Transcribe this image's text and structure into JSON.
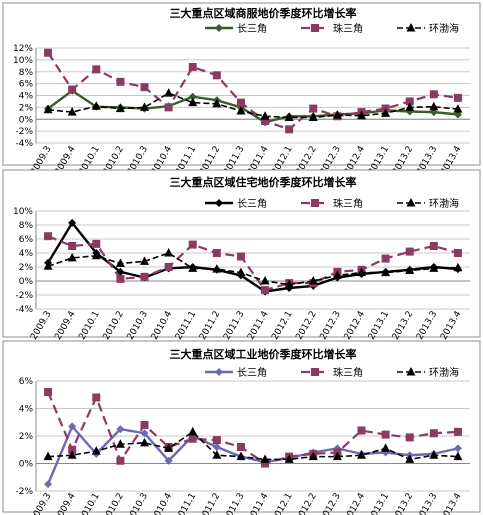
{
  "chart_data": [
    {
      "type": "line",
      "title": "三大重点区域商服地价季度环比增长率",
      "categories": [
        "2009.3",
        "2009.4",
        "2010.1",
        "2010.2",
        "2010.3",
        "2010.4",
        "2011.1",
        "2011.2",
        "2011.3",
        "2011.4",
        "2012.1",
        "2012.2",
        "2012.3",
        "2012.4",
        "2013.1",
        "2013.2",
        "2013.3",
        "2013.4"
      ],
      "ylim": [
        -4,
        12
      ],
      "yticks": [
        "-4%",
        "-2%",
        "0%",
        "2%",
        "4%",
        "6%",
        "8%",
        "10%",
        "12%"
      ],
      "grid": true,
      "legend_position": "top-right",
      "series": [
        {
          "name": "长三角",
          "color": "#3d5a2a",
          "values": [
            1.8,
            4.8,
            2.1,
            2.0,
            1.8,
            2.2,
            3.8,
            3.2,
            2.0,
            -0.5,
            0.5,
            0.5,
            0.8,
            1.0,
            1.5,
            1.3,
            1.2,
            0.8
          ]
        },
        {
          "name": "珠三角",
          "color": "#8b3a62",
          "values": [
            11.2,
            5.0,
            8.4,
            6.3,
            5.4,
            2.0,
            8.8,
            7.4,
            2.8,
            -0.3,
            -1.7,
            1.8,
            0.5,
            1.2,
            1.8,
            3.0,
            4.2,
            3.6
          ]
        },
        {
          "name": "环渤海",
          "color": "#000000",
          "values": [
            1.6,
            1.2,
            2.2,
            1.8,
            2.0,
            4.4,
            2.8,
            2.6,
            1.4,
            0.5,
            0.3,
            0.3,
            0.7,
            0.6,
            1.0,
            2.0,
            2.1,
            1.7
          ]
        }
      ]
    },
    {
      "type": "line",
      "title": "三大重点区域住宅地价季度环比增长率",
      "categories": [
        "2009.3",
        "2009.4",
        "2010.1",
        "2010.2",
        "2010.3",
        "2010.4",
        "2011.1",
        "2011.2",
        "2011.3",
        "2011.4",
        "2012.1",
        "2012.2",
        "2012.3",
        "2012.4",
        "2013.1",
        "2013.2",
        "2013.3",
        "2013.4"
      ],
      "ylim": [
        -4,
        10
      ],
      "yticks": [
        "-4%",
        "-2%",
        "0%",
        "2%",
        "4%",
        "6%",
        "8%",
        "10%"
      ],
      "grid": true,
      "legend_position": "top-right",
      "series": [
        {
          "name": "长三角",
          "color": "#000000",
          "values": [
            2.6,
            8.3,
            4.0,
            1.3,
            0.5,
            1.8,
            2.0,
            1.6,
            0.8,
            -1.5,
            -1.0,
            -0.7,
            0.5,
            1.0,
            1.3,
            1.6,
            2.0,
            1.7
          ]
        },
        {
          "name": "珠三角",
          "color": "#8b3a62",
          "values": [
            6.4,
            5.0,
            5.3,
            0.3,
            0.6,
            2.0,
            5.2,
            4.0,
            3.5,
            -1.3,
            -0.3,
            -0.3,
            1.3,
            1.6,
            3.2,
            4.2,
            5.0,
            4.0
          ]
        },
        {
          "name": "环渤海",
          "color": "#000000",
          "values": [
            2.1,
            3.3,
            3.6,
            2.5,
            2.8,
            4.0,
            1.8,
            1.7,
            1.2,
            0.0,
            -0.5,
            0.0,
            0.8,
            1.2,
            1.2,
            1.5,
            1.8,
            1.9
          ]
        }
      ]
    },
    {
      "type": "line",
      "title": "三大重点区域工业地价季度环比增长率",
      "categories": [
        "2009.3",
        "2009.4",
        "2010.1",
        "2010.2",
        "2010.3",
        "2010.4",
        "2011.1",
        "2011.2",
        "2011.3",
        "2011.4",
        "2012.1",
        "2012.2",
        "2012.3",
        "2012.4",
        "2013.1",
        "2013.2",
        "2013.3",
        "2013.4"
      ],
      "ylim": [
        -2,
        6
      ],
      "yticks": [
        "-2%",
        "0%",
        "2%",
        "4%",
        "6%"
      ],
      "grid": true,
      "legend_position": "top-right",
      "series": [
        {
          "name": "长三角",
          "color": "#6a6ab0",
          "values": [
            -1.5,
            2.7,
            0.7,
            2.5,
            2.2,
            0.2,
            2.0,
            1.2,
            0.5,
            0.1,
            0.4,
            0.8,
            1.1,
            0.7,
            0.8,
            0.6,
            0.7,
            1.1
          ]
        },
        {
          "name": "珠三角",
          "color": "#8b3a62",
          "values": [
            5.2,
            1.0,
            4.8,
            0.2,
            2.8,
            1.2,
            1.8,
            1.7,
            1.2,
            0.0,
            0.5,
            0.7,
            0.8,
            2.4,
            2.1,
            1.9,
            2.2,
            2.3
          ]
        },
        {
          "name": "环渤海",
          "color": "#000000",
          "values": [
            0.5,
            0.6,
            0.9,
            1.4,
            1.5,
            1.1,
            2.3,
            0.6,
            0.5,
            0.3,
            0.3,
            0.5,
            0.5,
            0.6,
            1.1,
            0.3,
            0.6,
            0.5
          ]
        }
      ]
    }
  ]
}
